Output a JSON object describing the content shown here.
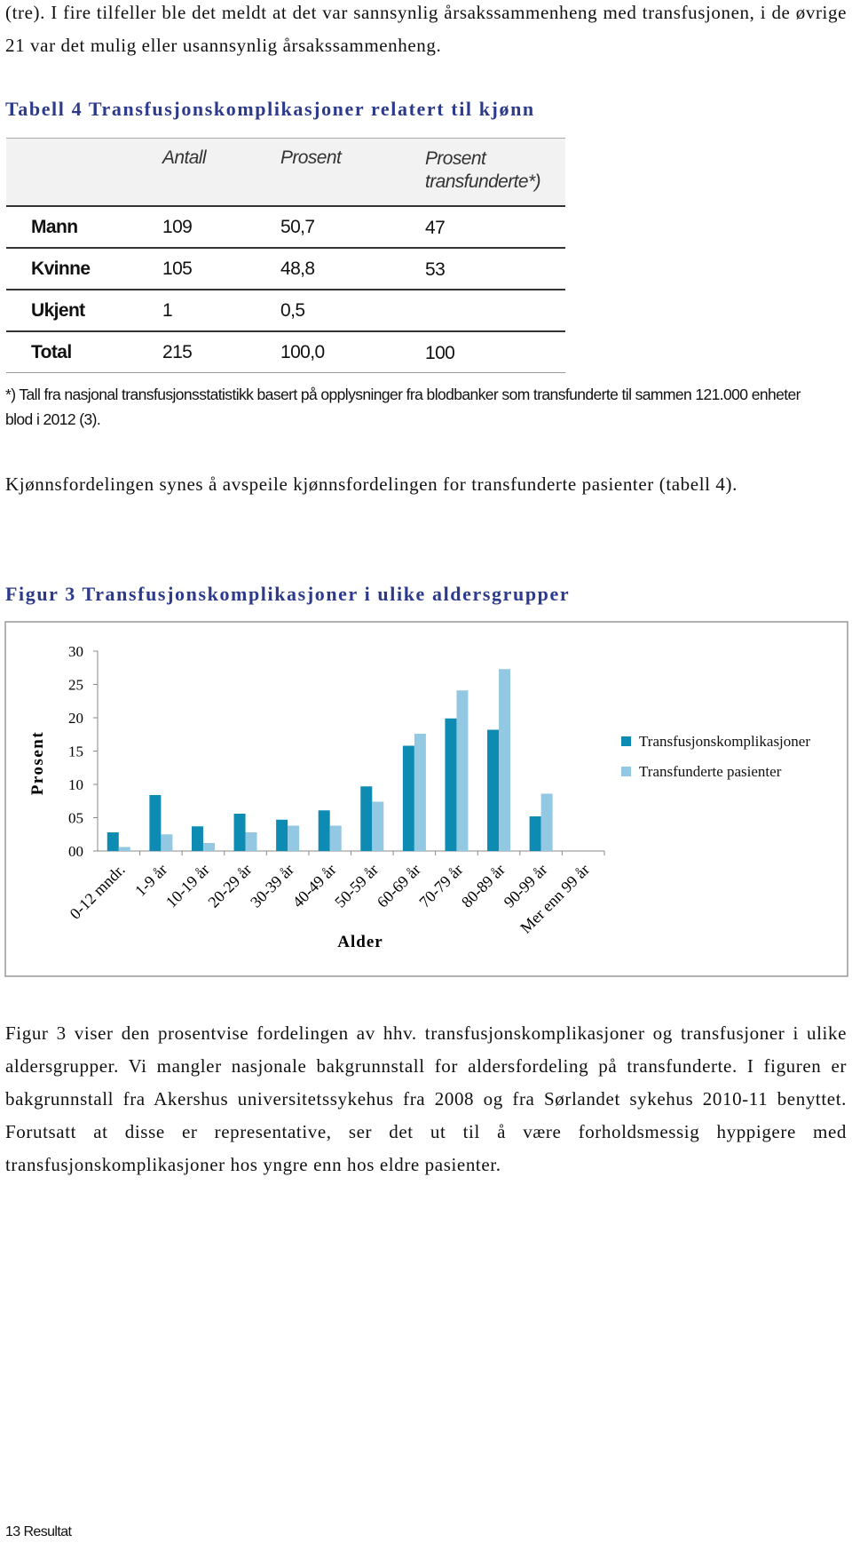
{
  "intro": "(tre). I fire tilfeller ble det meldt at det var sannsynlig årsakssammenheng med transfusjonen, i de øvrige 21 var det mulig eller usannsynlig årsakssammenheng.",
  "table": {
    "title": "Tabell 4 Transfusjonskomplikasjoner relatert til kjønn",
    "columns": [
      "Antall",
      "Prosent",
      "Prosent transfunderte*)"
    ],
    "rows": [
      [
        "Mann",
        "109",
        "50,7",
        "47"
      ],
      [
        "Kvinne",
        "105",
        "48,8",
        "53"
      ],
      [
        "Ukjent",
        "1",
        "0,5"
      ],
      [
        "Total",
        "215",
        "100,0",
        "100"
      ]
    ],
    "footnote": "*) Tall fra nasjonal transfusjonsstatistikk basert på opplysninger fra blodbanker som transfunderte til sammen 121.000 enheter blod i 2012 (3)."
  },
  "paragraph1": "Kjønnsfordelingen synes å avspeile kjønnsfordelingen for transfunderte pasienter (tabell 4).",
  "chart_data": {
    "type": "bar",
    "title": "Figur 3 Transfusjonskomplikasjoner i ulike aldersgrupper",
    "x_label": "Alder",
    "y_label": "Prosent",
    "categories": [
      "0-12 mndr.",
      "1-9 år",
      "10-19 år",
      "20-29 år",
      "30-39 år",
      "40-49 år",
      "50-59 år",
      "60-69 år",
      "70-79 år",
      "80-89 år",
      "90-99 år",
      "Mer enn 99 år"
    ],
    "series": [
      {
        "name": "Transfusjonskomplikasjoner",
        "color": "#0e8bb3",
        "values": [
          2.8,
          8.4,
          3.7,
          5.6,
          4.7,
          6.1,
          9.7,
          15.8,
          19.9,
          18.2,
          5.2,
          0
        ]
      },
      {
        "name": "Transfunderte pasienter",
        "color": "#93c8e2",
        "values": [
          0.6,
          2.5,
          1.2,
          2.8,
          3.8,
          3.8,
          7.4,
          17.6,
          24.1,
          27.3,
          8.6,
          0
        ]
      }
    ],
    "ylim": [
      0,
      30
    ],
    "yticks": [
      {
        "value": 0,
        "label": "00"
      },
      {
        "value": 5,
        "label": "05"
      },
      10,
      15,
      20,
      25,
      30
    ],
    "grid": false,
    "legend": "right"
  },
  "paragraph2": "Figur 3 viser den prosentvise fordelingen av hhv. transfusjonskomplikasjoner og transfusjoner i ulike aldersgrupper. Vi mangler nasjonale bakgrunnstall for aldersfordeling på transfunderte. I figuren er bakgrunnstall fra Akershus universitetssykehus fra 2008 og fra Sørlandet sykehus 2010-11 benyttet. Forutsatt at disse er representative, ser det ut til å være forholdsmessig hyppigere med transfusjonskomplikasjoner hos yngre enn hos eldre pasienter.",
  "footer": "13  Resultat"
}
